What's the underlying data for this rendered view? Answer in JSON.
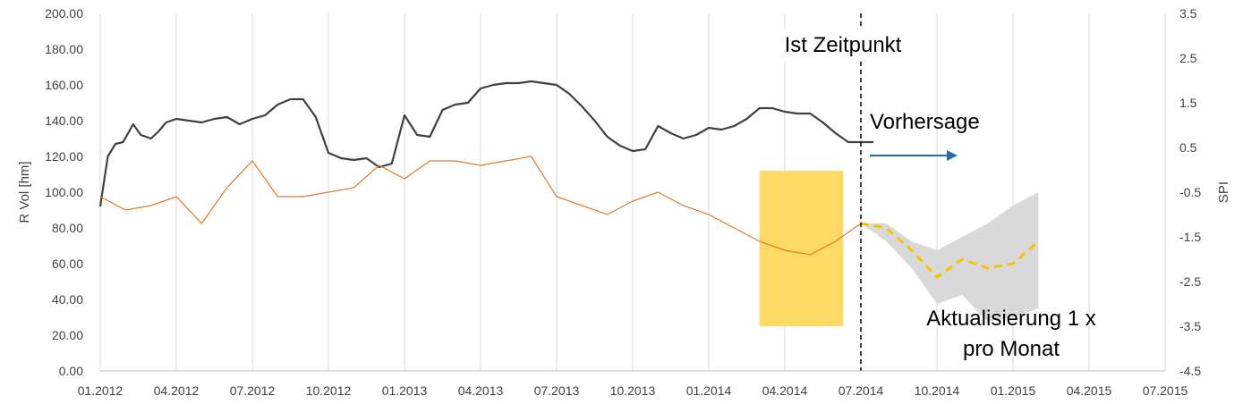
{
  "chart_data": {
    "type": "line",
    "title": "",
    "ylabel_left": "R Vol [hm]",
    "ylabel_right": "SPI",
    "y_left_range": [
      0,
      200
    ],
    "y_right_range": [
      -4.5,
      3.5
    ],
    "y_left_ticks": [
      "0.00",
      "20.00",
      "40.00",
      "60.00",
      "80.00",
      "100.00",
      "120.00",
      "140.00",
      "160.00",
      "180.00",
      "200.00"
    ],
    "y_right_ticks": [
      "-4.5",
      "-3.5",
      "-2.5",
      "-1.5",
      "-0.5",
      "0.5",
      "1.5",
      "2.5",
      "3.5"
    ],
    "x_ticks": [
      "01.2012",
      "04.2012",
      "07.2012",
      "10.2012",
      "01.2013",
      "04.2013",
      "07.2013",
      "10.2013",
      "01.2014",
      "04.2014",
      "07.2014",
      "10.2014",
      "01.2015",
      "04.2015",
      "07.2015"
    ],
    "grid": "vertical",
    "colors": {
      "reservoir": "#404040",
      "spi": "#e07b2a",
      "forecast": "#f5c400",
      "uncertainty": "#d9d9d9",
      "highlight": "#ffd966",
      "arrow": "#1f6fb5"
    },
    "series": [
      {
        "axis": "left",
        "x": [
          0,
          0.3,
          0.6,
          0.9,
          1.3,
          1.6,
          2.0,
          2.3,
          2.6,
          3.0,
          3.5,
          4.0,
          4.5,
          5.0,
          5.5,
          6.0,
          6.5,
          7.0,
          7.5,
          8.0,
          8.5,
          9.0,
          9.5,
          10.0,
          10.5,
          11.0,
          11.5,
          12.0,
          12.5,
          13.0,
          13.5,
          14.0,
          14.5,
          15.0,
          15.5,
          16.0,
          16.5,
          17.0,
          17.5,
          18.0,
          18.5,
          19.0,
          19.5,
          20.0,
          20.5,
          21.0,
          21.5,
          22.0,
          22.5,
          23.0,
          23.5,
          24.0,
          24.5,
          25.0,
          25.5,
          26.0,
          26.5,
          27.0,
          27.5,
          28.0,
          28.5,
          29.0,
          29.5,
          30.0,
          30.5
        ],
        "values": [
          92,
          120,
          127,
          128,
          138,
          132,
          130,
          134,
          139,
          141,
          140,
          139,
          141,
          142,
          138,
          141,
          143,
          149,
          152,
          152,
          142,
          122,
          119,
          118,
          119,
          114,
          116,
          143,
          132,
          131,
          146,
          149,
          150,
          158,
          160,
          161,
          161,
          162,
          161,
          160,
          155,
          148,
          140,
          131,
          126,
          123,
          124,
          137,
          133,
          130,
          132,
          136,
          135,
          137,
          141,
          147,
          147,
          145,
          144,
          144,
          139,
          133,
          128,
          128,
          128
        ]
      },
      {
        "axis": "right",
        "x": [
          0,
          1,
          2,
          3,
          4,
          5,
          6,
          7,
          8,
          9,
          10,
          11,
          12,
          13,
          14,
          15,
          16,
          17,
          18,
          19,
          20,
          21,
          22,
          23,
          24,
          25,
          26,
          27,
          28,
          29,
          30
        ],
        "values": [
          -0.6,
          -0.9,
          -0.8,
          -0.6,
          -1.2,
          -0.4,
          0.2,
          -0.6,
          -0.6,
          -0.5,
          -0.4,
          0.1,
          -0.2,
          0.2,
          0.2,
          0.1,
          0.2,
          0.3,
          -0.6,
          -0.8,
          -1.0,
          -0.7,
          -0.5,
          -0.8,
          -1.0,
          -1.3,
          -1.6,
          -1.8,
          -1.9,
          -1.6,
          -1.2
        ]
      },
      {
        "axis": "right",
        "x": [
          30,
          31,
          32,
          33,
          34,
          35,
          36,
          37
        ],
        "values": [
          -1.2,
          -1.3,
          -1.8,
          -2.4,
          -2.0,
          -2.2,
          -2.1,
          -1.6
        ]
      },
      {
        "axis": "right",
        "x": [
          30,
          31,
          32,
          33,
          34,
          35,
          36,
          37
        ],
        "values_low": [
          -1.2,
          -1.6,
          -2.2,
          -3.0,
          -2.8,
          -3.4,
          -3.3,
          -3.1
        ],
        "values_high": [
          -1.2,
          -1.2,
          -1.6,
          -1.8,
          -1.5,
          -1.2,
          -0.8,
          -0.5
        ]
      }
    ],
    "annotations": {
      "now_label": "Ist Zeitpunkt",
      "forecast_label": "Vorhersage",
      "update_line1": "Aktualisierung 1 x",
      "update_line2": "pro Monat"
    },
    "highlight_range": {
      "x": [
        26,
        29.3
      ],
      "y_left": [
        25,
        112
      ]
    },
    "now_x": 30
  }
}
